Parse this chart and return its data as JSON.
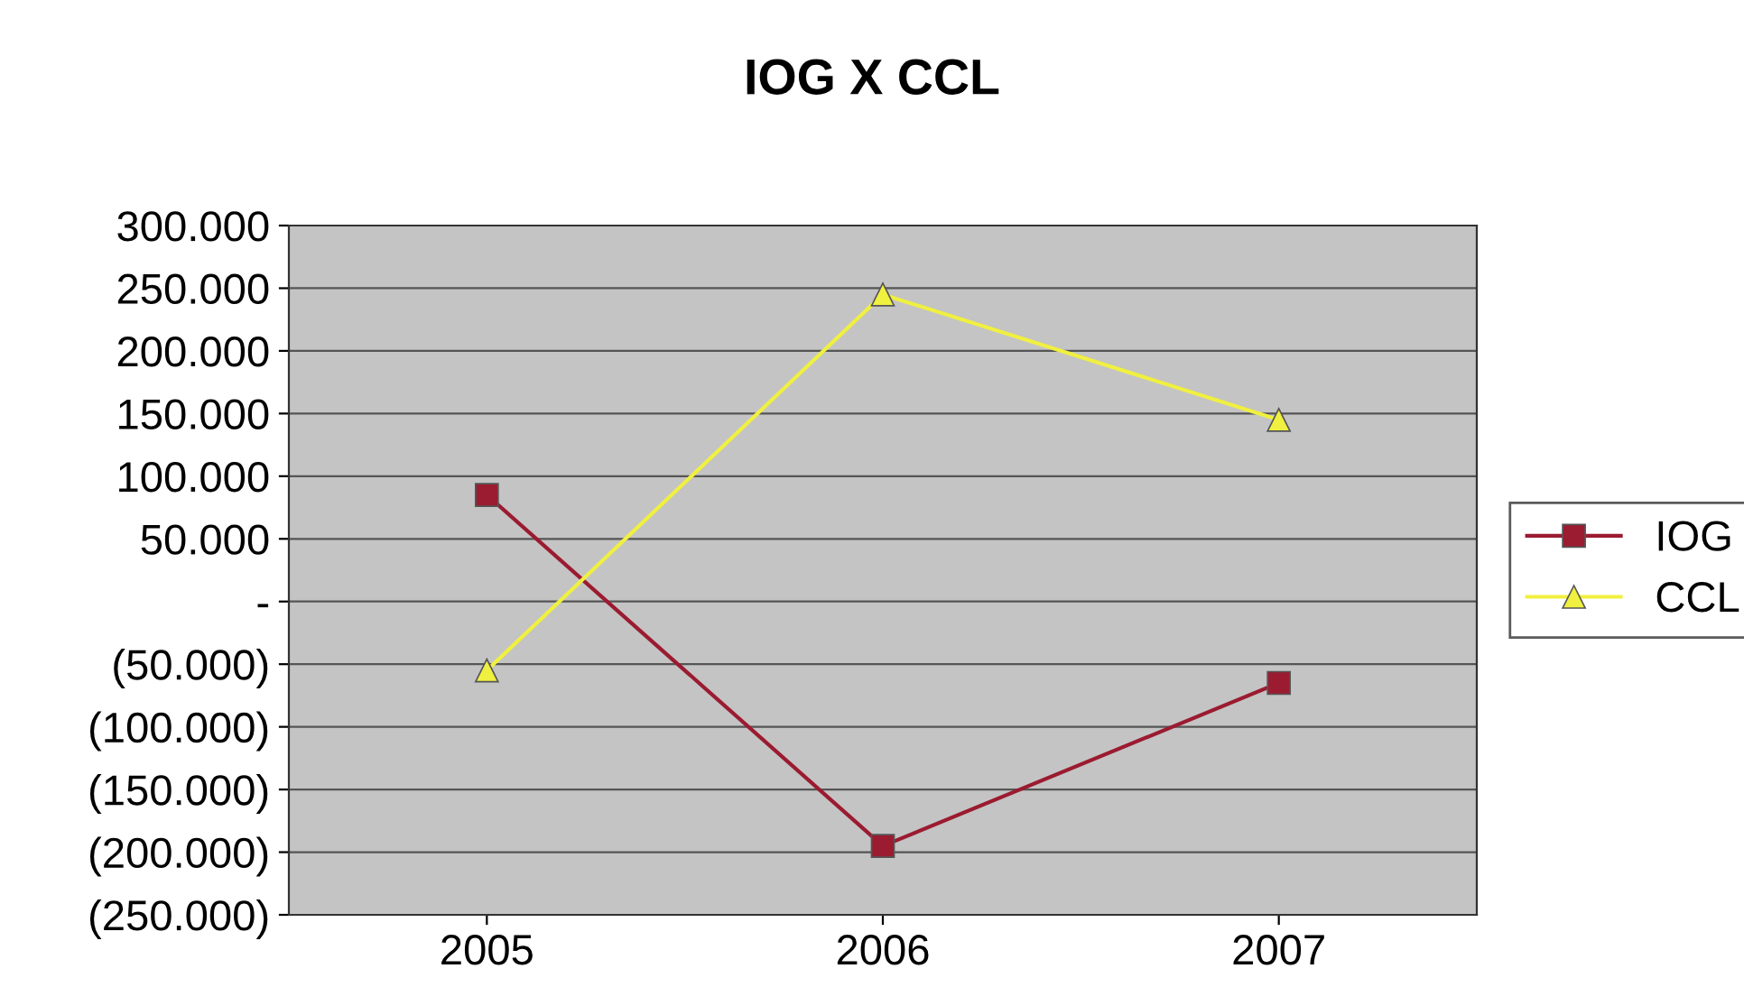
{
  "chart_data": {
    "type": "line",
    "title": "IOG X CCL",
    "categories": [
      "2005",
      "2006",
      "2007"
    ],
    "series": [
      {
        "name": "IOG",
        "color": "#9b1b30",
        "marker": "square",
        "values": [
          85000,
          -195000,
          -65000
        ]
      },
      {
        "name": "CCL",
        "color": "#f0f040",
        "marker": "triangle",
        "values": [
          -55000,
          245000,
          145000
        ]
      }
    ],
    "ylim": [
      -250000,
      300000
    ],
    "yticks": [
      {
        "value": -250000,
        "label": "(250.000)"
      },
      {
        "value": -200000,
        "label": "(200.000)"
      },
      {
        "value": -150000,
        "label": "(150.000)"
      },
      {
        "value": -100000,
        "label": "(100.000)"
      },
      {
        "value": -50000,
        "label": "(50.000)"
      },
      {
        "value": 0,
        "label": "-"
      },
      {
        "value": 50000,
        "label": "50.000"
      },
      {
        "value": 100000,
        "label": "100.000"
      },
      {
        "value": 150000,
        "label": "150.000"
      },
      {
        "value": 200000,
        "label": "200.000"
      },
      {
        "value": 250000,
        "label": "250.000"
      },
      {
        "value": 300000,
        "label": "300.000"
      }
    ],
    "grid": "y",
    "legend": "right"
  }
}
